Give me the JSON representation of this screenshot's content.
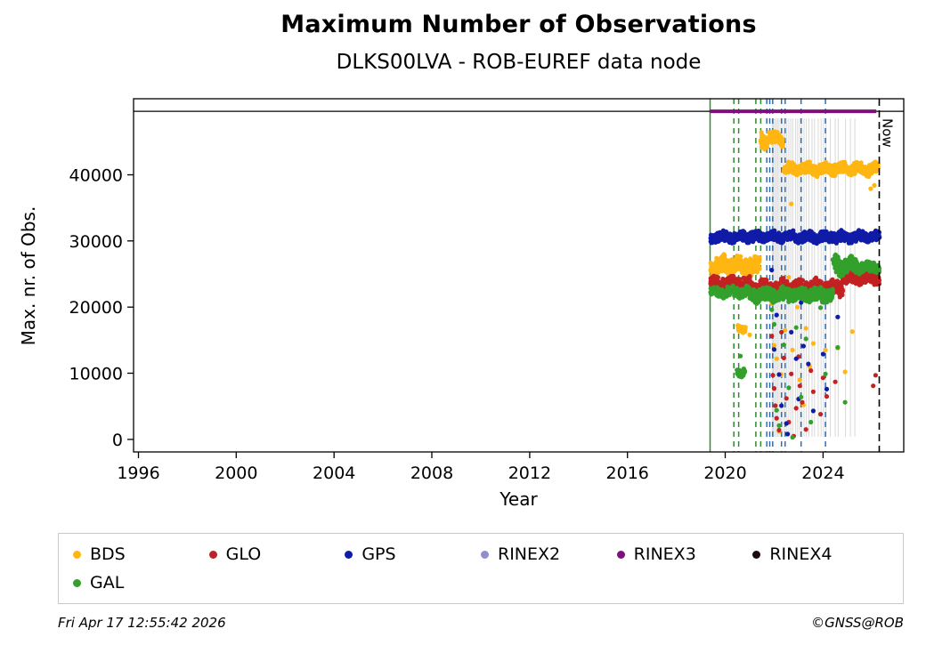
{
  "footer": {
    "left": "Fri Apr 17 12:55:42 2026",
    "right": "©GNSS@ROB"
  },
  "chart_data": {
    "type": "scatter",
    "title": "Maximum Number of Observations",
    "subtitle": "DLKS00LVA - ROB-EUREF data node",
    "xlabel": "Year",
    "ylabel": "Max. nr. of Obs.",
    "xlim": [
      1995.8,
      2027.3
    ],
    "ylim": [
      -1900,
      51500
    ],
    "xticks": [
      1996,
      2000,
      2004,
      2008,
      2012,
      2016,
      2020,
      2024
    ],
    "yticks": [
      0,
      10000,
      20000,
      30000,
      40000
    ],
    "grid": false,
    "legend_position": "bottom",
    "now": {
      "x": 2026.3,
      "label": "Now",
      "color": "#000000",
      "style": "dashed"
    },
    "hline": {
      "y": 49600,
      "color": "#000000"
    },
    "rinex3_line": {
      "y": 49600,
      "x0": 2019.38,
      "x1": 2026.18,
      "color": "#7D107D",
      "width": 4
    },
    "event_lines": [
      {
        "x": 2019.38,
        "color": "#2E8B2E",
        "style": "solid"
      },
      {
        "x": 2020.35,
        "color": "#2E8B2E",
        "style": "dashed"
      },
      {
        "x": 2020.55,
        "color": "#2E8B2E",
        "style": "dashed"
      },
      {
        "x": 2021.25,
        "color": "#2E8B2E",
        "style": "dashed"
      },
      {
        "x": 2021.45,
        "color": "#2E8B2E",
        "style": "dashed"
      },
      {
        "x": 2021.7,
        "color": "#2A6FBF",
        "style": "dashed"
      },
      {
        "x": 2021.82,
        "color": "#2A6FBF",
        "style": "dashed"
      },
      {
        "x": 2021.94,
        "color": "#2A6FBF",
        "style": "dashed"
      },
      {
        "x": 2022.3,
        "color": "#2A6FBF",
        "style": "dashed"
      },
      {
        "x": 2022.45,
        "color": "#2A6FBF",
        "style": "dashed"
      },
      {
        "x": 2023.1,
        "color": "#2A6FBF",
        "style": "dashed"
      },
      {
        "x": 2024.1,
        "color": "#2A6FBF",
        "style": "dashed"
      }
    ],
    "streaks": {
      "color": "#d8d8d8",
      "x": [
        2021.92,
        2021.97,
        2022.02,
        2022.08,
        2022.14,
        2022.2,
        2022.28,
        2022.36,
        2022.44,
        2022.52,
        2022.6,
        2022.68,
        2022.76,
        2022.88,
        2022.96,
        2023.04,
        2023.12,
        2023.22,
        2023.32,
        2023.42,
        2023.55,
        2023.65,
        2023.8,
        2023.92,
        2024.02,
        2024.12,
        2024.3,
        2024.5,
        2024.62,
        2024.92,
        2025.12,
        2025.3
      ]
    },
    "legend_order": [
      "BDS",
      "GLO",
      "GPS",
      "RINEX2",
      "RINEX3",
      "RINEX4",
      "GAL"
    ],
    "series": [
      {
        "name": "BDS",
        "color": "#FFB612",
        "bands": [
          [
            2019.4,
            2021.4,
            26200,
            1500
          ],
          [
            2020.52,
            2020.82,
            16600,
            600
          ],
          [
            2021.45,
            2022.35,
            45300,
            1300
          ],
          [
            2022.4,
            2026.25,
            40900,
            950
          ]
        ],
        "points": [
          [
            2021.0,
            15800
          ],
          [
            2021.9,
            20500
          ],
          [
            2022.0,
            14200
          ],
          [
            2022.05,
            23500
          ],
          [
            2022.1,
            12200
          ],
          [
            2022.2,
            1200
          ],
          [
            2022.3,
            9800
          ],
          [
            2022.45,
            16500
          ],
          [
            2022.6,
            24500
          ],
          [
            2022.7,
            35600
          ],
          [
            2022.75,
            13500
          ],
          [
            2022.95,
            20000
          ],
          [
            2023.05,
            9000
          ],
          [
            2023.2,
            5200
          ],
          [
            2023.3,
            16800
          ],
          [
            2023.45,
            11000
          ],
          [
            2023.6,
            14500
          ],
          [
            2023.9,
            21500
          ],
          [
            2024.1,
            13500
          ],
          [
            2024.6,
            13800
          ],
          [
            2024.9,
            10200
          ],
          [
            2025.2,
            16300
          ],
          [
            2025.95,
            37900
          ],
          [
            2026.1,
            38400
          ]
        ]
      },
      {
        "name": "GLO",
        "color": "#C32222",
        "bands": [
          [
            2019.4,
            2021.0,
            23600,
            1100
          ],
          [
            2021.0,
            2024.8,
            22900,
            1300
          ],
          [
            2024.8,
            2026.3,
            24400,
            1000
          ]
        ],
        "points": [
          [
            2021.9,
            15600
          ],
          [
            2021.95,
            9700
          ],
          [
            2022.0,
            7700
          ],
          [
            2022.05,
            5100
          ],
          [
            2022.1,
            3200
          ],
          [
            2022.2,
            1400
          ],
          [
            2022.3,
            16200
          ],
          [
            2022.4,
            12300
          ],
          [
            2022.5,
            6200
          ],
          [
            2022.6,
            2600
          ],
          [
            2022.7,
            9900
          ],
          [
            2022.8,
            500
          ],
          [
            2022.9,
            4700
          ],
          [
            2023.0,
            12500
          ],
          [
            2023.05,
            8100
          ],
          [
            2023.15,
            5600
          ],
          [
            2023.3,
            1500
          ],
          [
            2023.5,
            10400
          ],
          [
            2023.6,
            7200
          ],
          [
            2023.9,
            3800
          ],
          [
            2024.0,
            9300
          ],
          [
            2024.15,
            6500
          ],
          [
            2024.5,
            8700
          ],
          [
            2026.05,
            8100
          ],
          [
            2026.15,
            9700
          ]
        ]
      },
      {
        "name": "GPS",
        "color": "#101CA8",
        "bands": [
          [
            2019.4,
            2026.3,
            30600,
            850
          ]
        ],
        "points": [
          [
            2021.9,
            25600
          ],
          [
            2021.95,
            21200
          ],
          [
            2022.0,
            13600
          ],
          [
            2022.1,
            18800
          ],
          [
            2022.2,
            9800
          ],
          [
            2022.3,
            5100
          ],
          [
            2022.5,
            2400
          ],
          [
            2022.55,
            800
          ],
          [
            2022.7,
            16200
          ],
          [
            2022.9,
            12200
          ],
          [
            2023.0,
            6100
          ],
          [
            2023.1,
            20700
          ],
          [
            2023.2,
            14100
          ],
          [
            2023.4,
            11400
          ],
          [
            2023.6,
            4300
          ],
          [
            2024.0,
            12900
          ],
          [
            2024.15,
            7600
          ],
          [
            2024.6,
            18500
          ]
        ]
      },
      {
        "name": "GAL",
        "color": "#33A02C",
        "bands": [
          [
            2019.4,
            2021.0,
            22300,
            900
          ],
          [
            2020.48,
            2020.8,
            10200,
            700
          ],
          [
            2021.0,
            2024.4,
            21900,
            1100
          ],
          [
            2024.4,
            2025.4,
            26300,
            1500
          ],
          [
            2025.4,
            2026.3,
            26000,
            900
          ]
        ],
        "points": [
          [
            2020.62,
            12600
          ],
          [
            2021.9,
            19600
          ],
          [
            2022.0,
            17400
          ],
          [
            2022.1,
            4400
          ],
          [
            2022.2,
            2100
          ],
          [
            2022.4,
            14300
          ],
          [
            2022.6,
            7800
          ],
          [
            2022.75,
            300
          ],
          [
            2022.9,
            16900
          ],
          [
            2023.1,
            6400
          ],
          [
            2023.3,
            15200
          ],
          [
            2023.5,
            2600
          ],
          [
            2023.9,
            19900
          ],
          [
            2024.1,
            9900
          ],
          [
            2024.6,
            13900
          ],
          [
            2024.9,
            5600
          ]
        ]
      },
      {
        "name": "RINEX2",
        "color": "#8E8ED0",
        "bands": [],
        "points": []
      },
      {
        "name": "RINEX3",
        "color": "#7D107D",
        "bands": [],
        "points": []
      },
      {
        "name": "RINEX4",
        "color": "#1E0A0A",
        "bands": [],
        "points": []
      }
    ]
  }
}
